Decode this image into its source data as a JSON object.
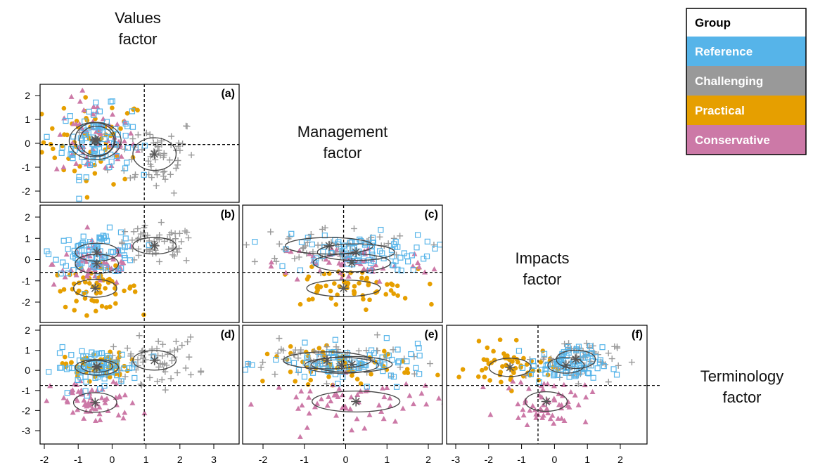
{
  "chart_data": {
    "type": "scatter",
    "description_free": true,
    "factor_labels": [
      {
        "text": "Values\nfactor"
      },
      {
        "text": "Management\nfactor"
      },
      {
        "text": "Impacts\nfactor"
      },
      {
        "text": "Terminology\nfactor"
      }
    ],
    "legend": {
      "title": "Group",
      "entries": [
        {
          "name": "Reference",
          "color": "#56b4e9",
          "marker": "open-square"
        },
        {
          "name": "Challenging",
          "color": "#999999",
          "marker": "plus"
        },
        {
          "name": "Practical",
          "color": "#e69f00",
          "marker": "filled-circle"
        },
        {
          "name": "Conservative",
          "color": "#cc79a7",
          "marker": "filled-triangle"
        }
      ]
    },
    "x_axes": [
      {
        "column": 0,
        "factor": "Values",
        "range": [
          -2.2,
          3.8
        ],
        "ticks": [
          "-2",
          "-1",
          "0",
          "1",
          "2",
          "3"
        ]
      },
      {
        "column": 1,
        "factor": "Management",
        "range": [
          -2.6,
          2.4
        ],
        "ticks": [
          "-2",
          "-1",
          "0",
          "1",
          "2"
        ]
      },
      {
        "column": 2,
        "factor": "Impacts",
        "range": [
          -3.2,
          2.6
        ],
        "ticks": [
          "-3",
          "-2",
          "-1",
          "0",
          "1",
          "2"
        ]
      }
    ],
    "y_axes": [
      {
        "row": 0,
        "factor": "Management",
        "range": [
          -2.5,
          2.3
        ],
        "ticks": [
          "2",
          "1",
          "0",
          "-1",
          "-2"
        ]
      },
      {
        "row": 1,
        "factor": "Impacts",
        "range": [
          -2.8,
          2.5
        ],
        "ticks": [
          "2",
          "1",
          "0",
          "-1",
          "-2"
        ]
      },
      {
        "row": 2,
        "factor": "Terminology",
        "range": [
          -3.5,
          2.2
        ],
        "ticks": [
          "2",
          "1",
          "0",
          "-1",
          "-2",
          "-3"
        ]
      }
    ],
    "panels": [
      {
        "tag": "(a)",
        "row": 0,
        "col": 0,
        "vline": 0.95,
        "hline": -0.05,
        "centroids": [
          {
            "group": "Reference",
            "x": -0.45,
            "y": 0.1,
            "sx": 0.6,
            "sy": 0.95
          },
          {
            "group": "Conservative",
            "x": -0.5,
            "y": 0.15,
            "sx": 0.7,
            "sy": 1.1
          },
          {
            "group": "Practical",
            "x": -0.5,
            "y": 0.1,
            "sx": 0.9,
            "sy": 1.2
          },
          {
            "group": "Challenging",
            "x": 1.25,
            "y": -0.45,
            "sx": 0.75,
            "sy": 1.05
          }
        ]
      },
      {
        "tag": "(b)",
        "row": 1,
        "col": 0,
        "vline": 0.95,
        "hline": -0.6,
        "centroids": [
          {
            "group": "Reference",
            "x": -0.45,
            "y": 0.35,
            "sx": 0.75,
            "sy": 0.65
          },
          {
            "group": "Conservative",
            "x": -0.45,
            "y": -0.2,
            "sx": 0.75,
            "sy": 0.7
          },
          {
            "group": "Practical",
            "x": -0.5,
            "y": -1.35,
            "sx": 0.75,
            "sy": 0.65
          },
          {
            "group": "Challenging",
            "x": 1.25,
            "y": 0.65,
            "sx": 0.75,
            "sy": 0.6
          }
        ]
      },
      {
        "tag": "(c)",
        "row": 1,
        "col": 1,
        "vline": -0.05,
        "hline": -0.6,
        "centroids": [
          {
            "group": "Challenging",
            "x": -0.4,
            "y": 0.65,
            "sx": 1.25,
            "sy": 0.6
          },
          {
            "group": "Reference",
            "x": 0.25,
            "y": 0.35,
            "sx": 1.1,
            "sy": 0.6
          },
          {
            "group": "Conservative",
            "x": 0.15,
            "y": -0.15,
            "sx": 1.1,
            "sy": 0.65
          },
          {
            "group": "Practical",
            "x": -0.05,
            "y": -1.35,
            "sx": 1.05,
            "sy": 0.6
          }
        ]
      },
      {
        "tag": "(d)",
        "row": 2,
        "col": 0,
        "vline": 0.95,
        "hline": -0.75,
        "centroids": [
          {
            "group": "Reference",
            "x": -0.45,
            "y": 0.15,
            "sx": 0.75,
            "sy": 0.6
          },
          {
            "group": "Practical",
            "x": -0.45,
            "y": 0.2,
            "sx": 0.55,
            "sy": 0.45
          },
          {
            "group": "Challenging",
            "x": 1.25,
            "y": 0.5,
            "sx": 0.75,
            "sy": 0.75
          },
          {
            "group": "Conservative",
            "x": -0.5,
            "y": -1.6,
            "sx": 0.75,
            "sy": 0.75
          }
        ]
      },
      {
        "tag": "(e)",
        "row": 2,
        "col": 1,
        "vline": -0.05,
        "hline": -0.75,
        "centroids": [
          {
            "group": "Challenging",
            "x": -0.45,
            "y": 0.5,
            "sx": 1.25,
            "sy": 0.65
          },
          {
            "group": "Reference",
            "x": 0.15,
            "y": 0.3,
            "sx": 1.15,
            "sy": 0.6
          },
          {
            "group": "Practical",
            "x": -0.1,
            "y": 0.25,
            "sx": 1.05,
            "sy": 0.6
          },
          {
            "group": "Conservative",
            "x": 0.25,
            "y": -1.55,
            "sx": 1.25,
            "sy": 0.8
          }
        ]
      },
      {
        "tag": "(f)",
        "row": 2,
        "col": 2,
        "vline": -0.5,
        "hline": -0.75,
        "centroids": [
          {
            "group": "Practical",
            "x": -1.35,
            "y": 0.15,
            "sx": 0.75,
            "sy": 0.7
          },
          {
            "group": "Reference",
            "x": 0.35,
            "y": 0.25,
            "sx": 0.65,
            "sy": 0.6
          },
          {
            "group": "Challenging",
            "x": 0.65,
            "y": 0.55,
            "sx": 0.7,
            "sy": 0.7
          },
          {
            "group": "Conservative",
            "x": -0.25,
            "y": -1.55,
            "sx": 0.75,
            "sy": 0.75
          }
        ]
      }
    ]
  }
}
